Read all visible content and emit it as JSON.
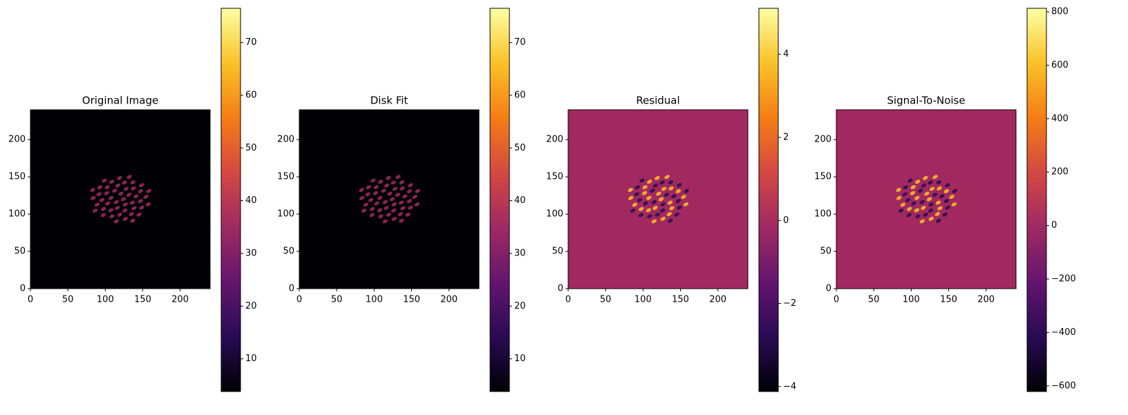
{
  "chart_data": [
    {
      "type": "image",
      "title": "Original Image",
      "xlim": [
        0,
        240
      ],
      "ylim": [
        0,
        240
      ],
      "xticks": [
        0,
        50,
        100,
        150,
        200
      ],
      "yticks": [
        0,
        50,
        100,
        150,
        200
      ],
      "clim": [
        3.8,
        76.5
      ],
      "cticks": [
        10,
        20,
        30,
        40,
        50,
        60,
        70
      ],
      "colormap": [
        "#000004",
        "#280b54",
        "#65156e",
        "#9f2a63",
        "#d44842",
        "#f57d15",
        "#fac228",
        "#fcffa4"
      ],
      "background_color": "#000004"
    },
    {
      "type": "image",
      "title": "Disk Fit",
      "xlim": [
        0,
        240
      ],
      "ylim": [
        0,
        240
      ],
      "xticks": [
        0,
        50,
        100,
        150,
        200
      ],
      "yticks": [
        0,
        50,
        100,
        150,
        200
      ],
      "clim": [
        3.8,
        76.5
      ],
      "cticks": [
        10,
        20,
        30,
        40,
        50,
        60,
        70
      ],
      "colormap": [
        "#000004",
        "#280b54",
        "#65156e",
        "#9f2a63",
        "#d44842",
        "#f57d15",
        "#fac228",
        "#fcffa4"
      ],
      "background_color": "#000004"
    },
    {
      "type": "image",
      "title": "Residual",
      "xlim": [
        0,
        240
      ],
      "ylim": [
        0,
        240
      ],
      "xticks": [
        0,
        50,
        100,
        150,
        200
      ],
      "yticks": [
        0,
        50,
        100,
        150,
        200
      ],
      "clim": [
        -4.12,
        5.11
      ],
      "cticks": [
        {
          "value": -4,
          "label": "−4"
        },
        {
          "value": -2,
          "label": "−2"
        },
        0,
        2,
        4
      ],
      "colormap": [
        "#000004",
        "#280b54",
        "#65156e",
        "#9f2a63",
        "#d44842",
        "#f57d15",
        "#fac228",
        "#fcffa4"
      ],
      "background_color": "#a2295f"
    },
    {
      "type": "image",
      "title": "Signal-To-Noise",
      "xlim": [
        0,
        240
      ],
      "ylim": [
        0,
        240
      ],
      "xticks": [
        0,
        50,
        100,
        150,
        200
      ],
      "yticks": [
        0,
        50,
        100,
        150,
        200
      ],
      "clim": [
        -621,
        813
      ],
      "cticks": [
        {
          "value": -600,
          "label": "−600"
        },
        {
          "value": -400,
          "label": "−400"
        },
        {
          "value": -200,
          "label": "−200"
        },
        0,
        200,
        400,
        600,
        800
      ],
      "colormap": [
        "#000004",
        "#280b54",
        "#65156e",
        "#9f2a63",
        "#d44842",
        "#f57d15",
        "#fac228",
        "#fcffa4"
      ],
      "background_color": "#a2295f"
    }
  ]
}
